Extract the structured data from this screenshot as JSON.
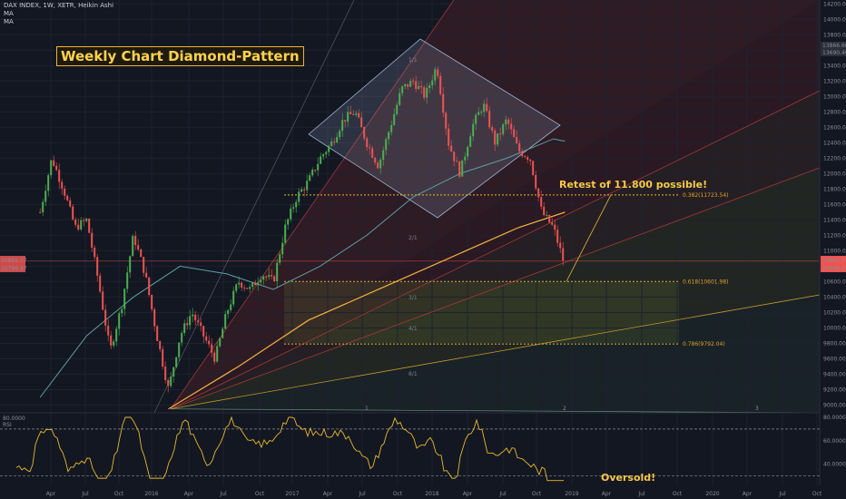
{
  "header": {
    "symbol_line": "DAX INDEX, 1W, XETR, Heikin Ashi",
    "ma1": "MA",
    "ma2": "MA"
  },
  "annotations": {
    "title": "Weekly Chart Diamond-Pattern",
    "retest": "Retest of 11.800 possible!",
    "oversold": "Oversold!"
  },
  "colors": {
    "background": "#131722",
    "up_candle": "#4caf50",
    "down_candle": "#ef5350",
    "ma_long": "#f5b041",
    "ma_short": "#5f9ea0",
    "fib_line": "#e8b82c",
    "rsi_line": "#e8b82c"
  },
  "chart_data": [
    {
      "type": "candlestick",
      "title": "DAX INDEX, 1W, XETR, Heikin Ashi",
      "ylim": [
        8900,
        14250
      ],
      "y_ticks": [
        9000,
        9200,
        9400,
        9600,
        9800,
        10000,
        10200,
        10400,
        10600,
        10800,
        11000,
        11200,
        11400,
        11600,
        11800,
        12000,
        12200,
        12400,
        12600,
        12800,
        13000,
        13200,
        13400,
        13600,
        13800,
        14000,
        14200
      ],
      "x_ticks": [
        "Apr",
        "Jul",
        "Oct",
        "2016",
        "Apr",
        "Jul",
        "Oct",
        "2017",
        "Apr",
        "Jul",
        "Oct",
        "2018",
        "Apr",
        "Jul",
        "Oct",
        "2019",
        "Apr",
        "Jul",
        "Oct",
        "2020",
        "Apr",
        "Jul",
        "Oct"
      ],
      "price_labels": [
        "10865.77",
        "10799.47"
      ],
      "right_labels": [
        "13866.66",
        "13690.49"
      ],
      "fib_levels": [
        {
          "label": "0.382(11723.54)",
          "value": 11723.54
        },
        {
          "label": "0.618(10601.98)",
          "value": 10601.98
        },
        {
          "label": "0.786(9792.04)",
          "value": 9792.04
        }
      ],
      "fan_labels": [
        "1/1",
        "2/1",
        "3/1",
        "4/1",
        "8/1"
      ],
      "pivot_labels": [
        "1",
        "2",
        "3"
      ],
      "close_points": [
        [
          "2015-03",
          11500
        ],
        [
          "2015-04",
          12200
        ],
        [
          "2015-05",
          11800
        ],
        [
          "2015-06",
          11300
        ],
        [
          "2015-07",
          11400
        ],
        [
          "2015-08",
          10600
        ],
        [
          "2015-09",
          9700
        ],
        [
          "2015-10",
          10300
        ],
        [
          "2015-11",
          11200
        ],
        [
          "2015-12",
          10700
        ],
        [
          "2016-01",
          9900
        ],
        [
          "2016-02",
          9200
        ],
        [
          "2016-03",
          9900
        ],
        [
          "2016-04",
          10200
        ],
        [
          "2016-05",
          9900
        ],
        [
          "2016-06",
          9600
        ],
        [
          "2016-07",
          10200
        ],
        [
          "2016-08",
          10600
        ],
        [
          "2016-09",
          10500
        ],
        [
          "2016-10",
          10700
        ],
        [
          "2016-11",
          10600
        ],
        [
          "2016-12",
          11300
        ],
        [
          "2017-01",
          11700
        ],
        [
          "2017-02",
          11900
        ],
        [
          "2017-03",
          12200
        ],
        [
          "2017-04",
          12400
        ],
        [
          "2017-05",
          12700
        ],
        [
          "2017-06",
          12800
        ],
        [
          "2017-07",
          12400
        ],
        [
          "2017-08",
          12100
        ],
        [
          "2017-09",
          12600
        ],
        [
          "2017-10",
          13100
        ],
        [
          "2017-11",
          13200
        ],
        [
          "2017-12",
          13000
        ],
        [
          "2018-01",
          13400
        ],
        [
          "2018-02",
          12400
        ],
        [
          "2018-03",
          12000
        ],
        [
          "2018-04",
          12600
        ],
        [
          "2018-05",
          12900
        ],
        [
          "2018-06",
          12400
        ],
        [
          "2018-07",
          12700
        ],
        [
          "2018-08",
          12300
        ],
        [
          "2018-09",
          12200
        ],
        [
          "2018-10",
          11500
        ],
        [
          "2018-11",
          11300
        ],
        [
          "2018-12",
          10800
        ]
      ],
      "ma_long_points": [
        [
          "2016-02",
          8950
        ],
        [
          "2016-08",
          9500
        ],
        [
          "2017-02",
          10100
        ],
        [
          "2017-08",
          10500
        ],
        [
          "2018-02",
          10900
        ],
        [
          "2018-08",
          11300
        ],
        [
          "2018-12",
          11500
        ]
      ],
      "ma_short_points": [
        [
          "2015-03",
          9100
        ],
        [
          "2015-07",
          9900
        ],
        [
          "2015-11",
          10400
        ],
        [
          "2016-03",
          10800
        ],
        [
          "2016-07",
          10700
        ],
        [
          "2016-11",
          10500
        ],
        [
          "2017-03",
          10800
        ],
        [
          "2017-07",
          11200
        ],
        [
          "2017-11",
          11700
        ],
        [
          "2018-03",
          12000
        ],
        [
          "2018-07",
          12200
        ],
        [
          "2018-11",
          12450
        ],
        [
          "2018-12",
          12420
        ]
      ]
    },
    {
      "type": "line",
      "title": "RSI",
      "ylim": [
        25,
        80
      ],
      "y_ticks": [
        40,
        60,
        80
      ],
      "y_tick_labels": [
        "40.0000",
        "60.0000",
        "80.0000"
      ],
      "bands": [
        70,
        30
      ],
      "left_label": "80.0000"
    }
  ]
}
